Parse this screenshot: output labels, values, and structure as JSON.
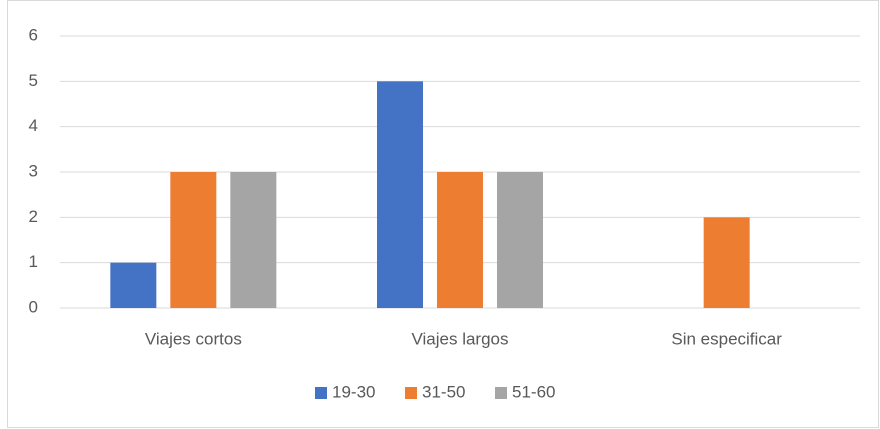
{
  "chart_data": {
    "type": "bar",
    "categories": [
      "Viajes cortos",
      "Viajes largos",
      "Sin especificar"
    ],
    "series": [
      {
        "name": "19-30",
        "color": "#4472c4",
        "values": [
          1,
          5,
          0
        ]
      },
      {
        "name": "31-50",
        "color": "#ed7d31",
        "values": [
          3,
          3,
          2
        ]
      },
      {
        "name": "51-60",
        "color": "#a5a5a5",
        "values": [
          3,
          3,
          0
        ]
      }
    ],
    "ylim": [
      0,
      6
    ],
    "yticks": [
      0,
      1,
      2,
      3,
      4,
      5,
      6
    ],
    "grid": true,
    "legend": "bottom"
  }
}
